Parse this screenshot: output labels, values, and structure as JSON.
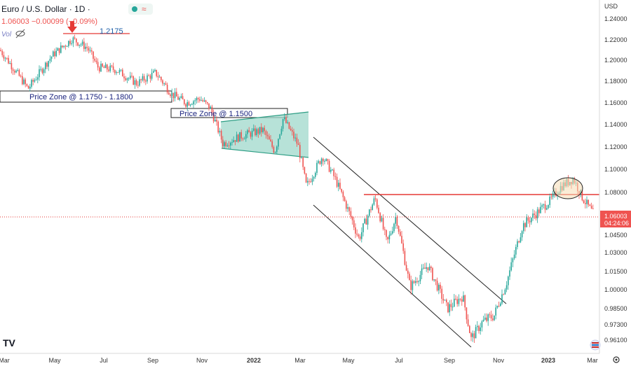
{
  "header": {
    "symbol_title": "Euro / U.S. Dollar · 1D ·",
    "ohlc_readout": "1.06003 −0.00099 (−0.09%)",
    "vol_label": "Vol"
  },
  "price_axis": {
    "currency": "USD",
    "ticks": [
      "1.24000",
      "1.22000",
      "1.20000",
      "1.18000",
      "1.16000",
      "1.14000",
      "1.12000",
      "1.10000",
      "1.08000",
      "1.06000",
      "1.04500",
      "1.03000",
      "1.01500",
      "1.00000",
      "0.98500",
      "0.97300",
      "0.96100"
    ],
    "current_price": "1.06003",
    "countdown": "04:24:06"
  },
  "time_axis": {
    "labels": [
      "Mar",
      "May",
      "Jul",
      "Sep",
      "Nov",
      "2022",
      "Mar",
      "May",
      "Jul",
      "Sep",
      "Nov",
      "2023",
      "Mar"
    ]
  },
  "annotations": {
    "peak_label": "1.2175",
    "zone1_label": "Price Zone @ 1.1750 - 1.1800",
    "zone2_label": "Price Zone @ 1.1500"
  },
  "colors": {
    "up": "#26a69a",
    "down": "#ef5350",
    "marker_red": "#e53935",
    "zone_fill": "#9fd8cb",
    "channel": "#222222",
    "price_line": "#e53935",
    "circle_fill": "#f5dcb4",
    "text_blue": "#1a237e"
  },
  "chart_data": {
    "type": "candlestick",
    "x_range": [
      "2021-03",
      "2023-03"
    ],
    "y_range": [
      0.955,
      1.245
    ],
    "key_levels": [
      1.2175,
      1.175,
      1.18,
      1.15,
      1.08
    ],
    "current_price": 1.06003,
    "path": [
      [
        0,
        1.21
      ],
      [
        40,
        1.173
      ],
      [
        75,
        1.205
      ],
      [
        103,
        1.221
      ],
      [
        125,
        1.212
      ],
      [
        140,
        1.193
      ],
      [
        165,
        1.191
      ],
      [
        195,
        1.178
      ],
      [
        222,
        1.188
      ],
      [
        245,
        1.168
      ],
      [
        265,
        1.16
      ],
      [
        285,
        1.164
      ],
      [
        300,
        1.155
      ],
      [
        318,
        1.123
      ],
      [
        345,
        1.13
      ],
      [
        375,
        1.135
      ],
      [
        392,
        1.116
      ],
      [
        404,
        1.146
      ],
      [
        425,
        1.122
      ],
      [
        437,
        1.085
      ],
      [
        460,
        1.112
      ],
      [
        478,
        1.092
      ],
      [
        512,
        1.042
      ],
      [
        535,
        1.075
      ],
      [
        552,
        1.038
      ],
      [
        565,
        1.06
      ],
      [
        585,
        1.002
      ],
      [
        610,
        1.02
      ],
      [
        638,
        0.985
      ],
      [
        660,
        0.995
      ],
      [
        672,
        0.962
      ],
      [
        688,
        0.975
      ],
      [
        705,
        0.98
      ],
      [
        722,
        1.005
      ],
      [
        745,
        1.052
      ],
      [
        765,
        1.062
      ],
      [
        785,
        1.073
      ],
      [
        800,
        1.085
      ],
      [
        818,
        1.092
      ],
      [
        830,
        1.076
      ],
      [
        848,
        1.06
      ]
    ]
  }
}
